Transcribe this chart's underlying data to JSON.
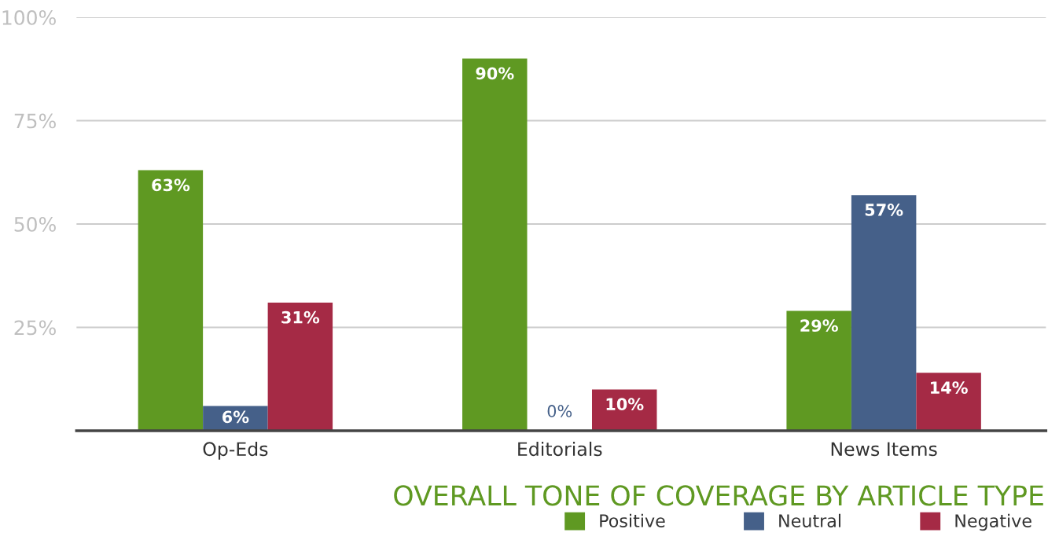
{
  "chart_data": {
    "type": "bar",
    "title": "OVERALL TONE OF COVERAGE BY ARTICLE TYPE",
    "categories": [
      "Op-Eds",
      "Editorials",
      "News Items"
    ],
    "series": [
      {
        "name": "Positive",
        "color": "#5f9922",
        "values": [
          63,
          90,
          29
        ]
      },
      {
        "name": "Neutral",
        "color": "#456089",
        "values": [
          6,
          0,
          57
        ]
      },
      {
        "name": "Negative",
        "color": "#a52a45",
        "values": [
          31,
          10,
          14
        ]
      }
    ],
    "ylim": [
      0,
      100
    ],
    "yticks": [
      {
        "value": 0,
        "label": null
      },
      {
        "value": 25,
        "label": "25%"
      },
      {
        "value": 50,
        "label": "50%"
      },
      {
        "value": 75,
        "label": "75%"
      },
      {
        "value": 100,
        "label": "100%"
      }
    ],
    "value_labels": [
      [
        "63%",
        "90%",
        "29%"
      ],
      [
        "6%",
        "0%",
        "57%"
      ],
      [
        "31%",
        "10%",
        "14%"
      ]
    ],
    "grid": "y",
    "legend": "bottom right"
  }
}
